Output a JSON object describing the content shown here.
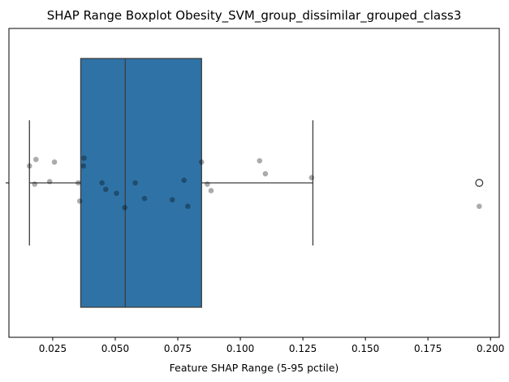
{
  "chart_data": {
    "type": "boxplot",
    "title": "SHAP Range Boxplot Obesity_SVM_group_dissimilar_grouped_class3",
    "xlabel": "Feature SHAP Range (5-95 pctile)",
    "ylabel": "",
    "xlim": [
      0.0075,
      0.2035
    ],
    "xticks": [
      0.025,
      0.05,
      0.075,
      0.1,
      0.125,
      0.15,
      0.175,
      0.2
    ],
    "xtick_labels": [
      "0.025",
      "0.050",
      "0.075",
      "0.100",
      "0.125",
      "0.150",
      "0.175",
      "0.200"
    ],
    "grid": false,
    "box": {
      "whisker_low": 0.0157,
      "q1": 0.0362,
      "median": 0.054,
      "q3": 0.0845,
      "whisker_high": 0.129,
      "outliers": [
        0.1955
      ],
      "color": "#2f73a6"
    },
    "points": [
      {
        "x": 0.0157,
        "y": 0.13
      },
      {
        "x": 0.0183,
        "y": 0.18
      },
      {
        "x": 0.0178,
        "y": -0.01
      },
      {
        "x": 0.0238,
        "y": 0.01
      },
      {
        "x": 0.0257,
        "y": 0.16
      },
      {
        "x": 0.0352,
        "y": 0.0
      },
      {
        "x": 0.0358,
        "y": -0.14
      },
      {
        "x": 0.0375,
        "y": 0.19
      },
      {
        "x": 0.0373,
        "y": 0.13
      },
      {
        "x": 0.0447,
        "y": 0.0
      },
      {
        "x": 0.0462,
        "y": -0.05
      },
      {
        "x": 0.0505,
        "y": -0.08
      },
      {
        "x": 0.0538,
        "y": -0.19
      },
      {
        "x": 0.058,
        "y": 0.0
      },
      {
        "x": 0.0617,
        "y": -0.12
      },
      {
        "x": 0.0728,
        "y": -0.13
      },
      {
        "x": 0.0775,
        "y": 0.02
      },
      {
        "x": 0.079,
        "y": -0.18
      },
      {
        "x": 0.0845,
        "y": 0.16
      },
      {
        "x": 0.0868,
        "y": -0.01
      },
      {
        "x": 0.0883,
        "y": -0.06
      },
      {
        "x": 0.1077,
        "y": 0.17
      },
      {
        "x": 0.11,
        "y": 0.07
      },
      {
        "x": 0.1285,
        "y": 0.04
      },
      {
        "x": 0.1955,
        "y": -0.18
      }
    ]
  }
}
